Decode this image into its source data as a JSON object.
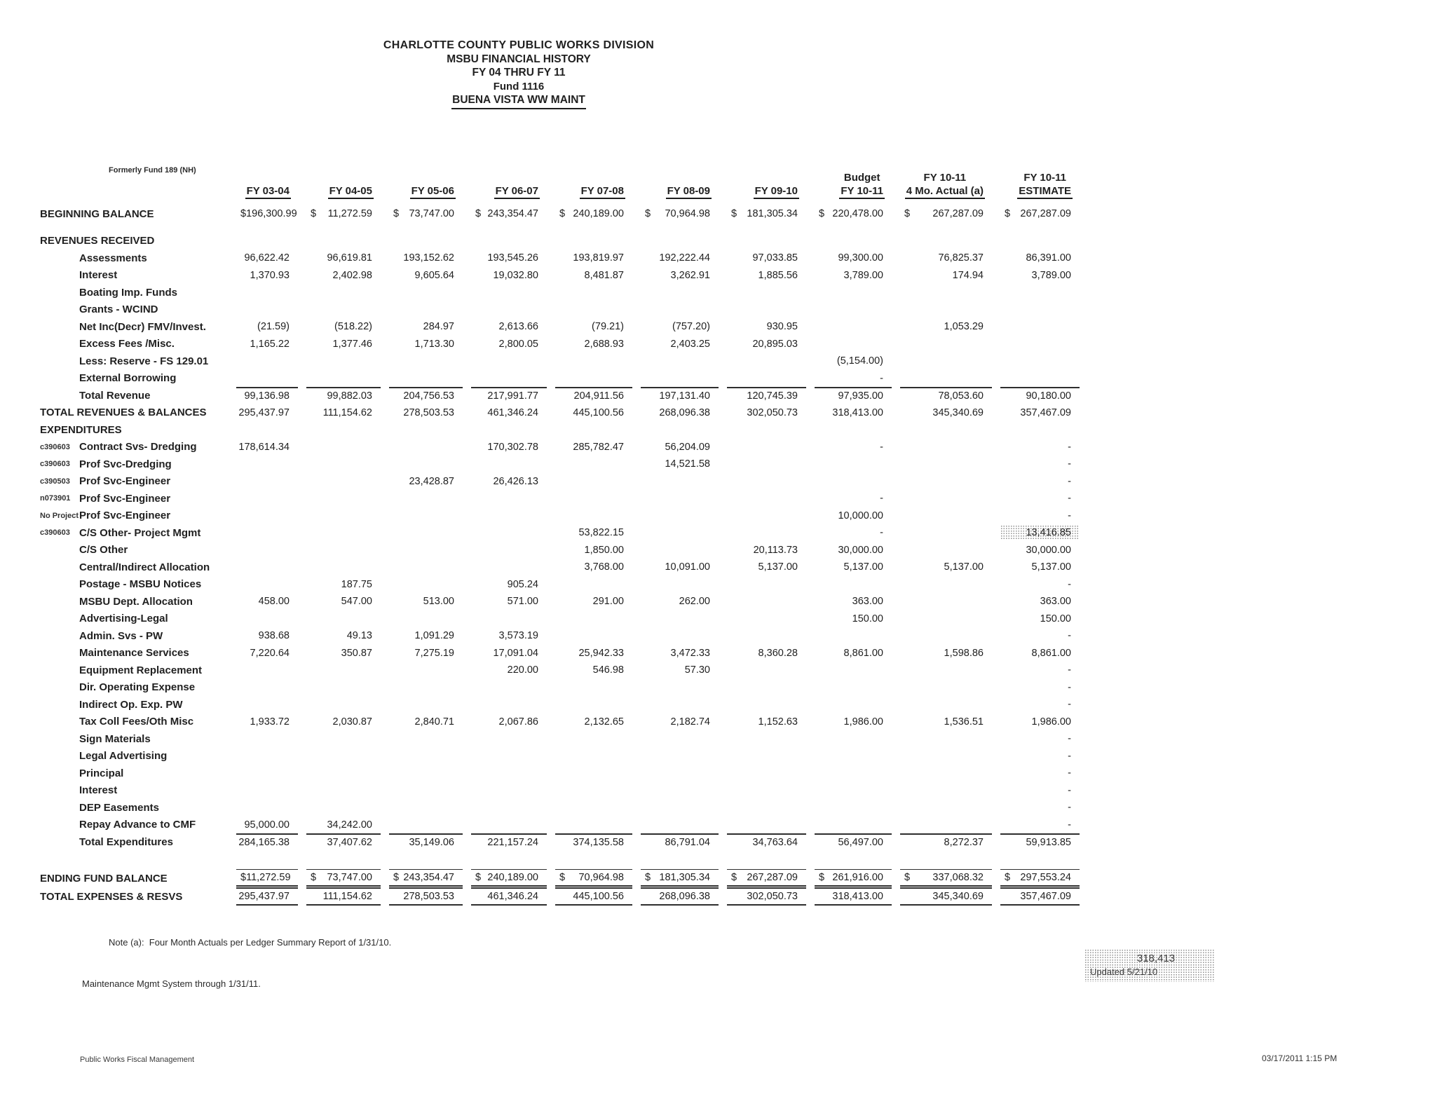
{
  "title": {
    "line1": "CHARLOTTE COUNTY PUBLIC WORKS DIVISION",
    "line2": "MSBU FINANCIAL HISTORY",
    "line3": "FY 04 THRU FY 11",
    "line4": "Fund 1116",
    "line5": "BUENA VISTA WW MAINT"
  },
  "subnote": "Formerly Fund 189 (NH)",
  "table": {
    "columns": [
      {
        "pre": "",
        "label": "FY 03-04"
      },
      {
        "pre": "",
        "label": "FY 04-05"
      },
      {
        "pre": "",
        "label": "FY 05-06"
      },
      {
        "pre": "",
        "label": "FY 06-07"
      },
      {
        "pre": "",
        "label": "FY 07-08"
      },
      {
        "pre": "",
        "label": "FY 08-09"
      },
      {
        "pre": "",
        "label": "FY 09-10"
      },
      {
        "pre": "Budget",
        "label": "FY 10-11"
      },
      {
        "pre": "FY 10-11",
        "label": "4 Mo. Actual (a)"
      },
      {
        "pre": "FY 10-11",
        "label": "ESTIMATE"
      }
    ],
    "rows": [
      {
        "wide": true,
        "dollar": true,
        "label": "BEGINNING BALANCE",
        "values": [
          "196,300.99",
          "11,272.59",
          "73,747.00",
          "243,354.47",
          "240,189.00",
          "70,964.98",
          "181,305.34",
          "220,478.00",
          "267,287.09",
          "267,287.09"
        ]
      },
      {
        "spacer": 14
      },
      {
        "section": "REVENUES RECEIVED"
      },
      {
        "label": "Assessments",
        "values": [
          "96,622.42",
          "96,619.81",
          "193,152.62",
          "193,545.26",
          "193,819.97",
          "192,222.44",
          "97,033.85",
          "99,300.00",
          "76,825.37",
          "86,391.00"
        ]
      },
      {
        "label": "Interest",
        "values": [
          "1,370.93",
          "2,402.98",
          "9,605.64",
          "19,032.80",
          "8,481.87",
          "3,262.91",
          "1,885.56",
          "3,789.00",
          "174.94",
          "3,789.00"
        ]
      },
      {
        "label": "Boating Imp. Funds",
        "values": [
          "",
          "",
          "",
          "",
          "",
          "",
          "",
          "",
          "",
          ""
        ]
      },
      {
        "label": "Grants - WCIND",
        "values": [
          "",
          "",
          "",
          "",
          "",
          "",
          "",
          "",
          "",
          ""
        ]
      },
      {
        "label": "Net Inc(Decr) FMV/Invest.",
        "values": [
          "(21.59)",
          "(518.22)",
          "284.97",
          "2,613.66",
          "(79.21)",
          "(757.20)",
          "930.95",
          "",
          "1,053.29",
          ""
        ]
      },
      {
        "label": "Excess Fees /Misc.",
        "values": [
          "1,165.22",
          "1,377.46",
          "1,713.30",
          "2,800.05",
          "2,688.93",
          "2,403.25",
          "20,895.03",
          "",
          "",
          ""
        ]
      },
      {
        "label": "Less: Reserve - FS 129.01",
        "values": [
          "",
          "",
          "",
          "",
          "",
          "",
          "",
          "(5,154.00)",
          "",
          ""
        ]
      },
      {
        "label": "External Borrowing",
        "values": [
          "",
          "",
          "",
          "",
          "",
          "",
          "",
          "-",
          "",
          ""
        ]
      },
      {
        "label": "Total Revenue",
        "rule": "top",
        "values": [
          "99,136.98",
          "99,882.03",
          "204,756.53",
          "217,991.77",
          "204,911.56",
          "197,131.40",
          "120,745.39",
          "97,935.00",
          "78,053.60",
          "90,180.00"
        ]
      },
      {
        "wide": true,
        "label": "TOTAL REVENUES & BALANCES",
        "values": [
          "295,437.97",
          "111,154.62",
          "278,503.53",
          "461,346.24",
          "445,100.56",
          "268,096.38",
          "302,050.73",
          "318,413.00",
          "345,340.69",
          "357,467.09"
        ]
      },
      {
        "section": "EXPENDITURES"
      },
      {
        "code": "c390603",
        "label": "Contract Svs- Dredging",
        "values": [
          "178,614.34",
          "",
          "",
          "170,302.78",
          "285,782.47",
          "56,204.09",
          "",
          "-",
          "",
          "-"
        ]
      },
      {
        "code": "c390603",
        "label": "Prof Svc-Dredging",
        "values": [
          "",
          "",
          "",
          "",
          "",
          "14,521.58",
          "",
          "",
          "",
          "-"
        ]
      },
      {
        "code": "c390503",
        "label": "Prof Svc-Engineer",
        "values": [
          "",
          "",
          "23,428.87",
          "26,426.13",
          "",
          "",
          "",
          "",
          "",
          "-"
        ]
      },
      {
        "code": "n073901",
        "label": "Prof Svc-Engineer",
        "values": [
          "",
          "",
          "",
          "",
          "",
          "",
          "",
          "-",
          "",
          "-"
        ]
      },
      {
        "code": "No Project",
        "label": "Prof Svc-Engineer",
        "values": [
          "",
          "",
          "",
          "",
          "",
          "",
          "",
          "10,000.00",
          "",
          "-"
        ]
      },
      {
        "code": "c390603",
        "label": "C/S Other- Project Mgmt",
        "highlight": 9,
        "values": [
          "",
          "",
          "",
          "",
          "53,822.15",
          "",
          "",
          "-",
          "",
          "13,416.85"
        ]
      },
      {
        "label": "C/S Other",
        "values": [
          "",
          "",
          "",
          "",
          "1,850.00",
          "",
          "20,113.73",
          "30,000.00",
          "",
          "30,000.00"
        ]
      },
      {
        "label": "Central/Indirect Allocation",
        "values": [
          "",
          "",
          "",
          "",
          "3,768.00",
          "10,091.00",
          "5,137.00",
          "5,137.00",
          "5,137.00",
          "5,137.00"
        ]
      },
      {
        "label": "Postage - MSBU Notices",
        "values": [
          "",
          "187.75",
          "",
          "905.24",
          "",
          "",
          "",
          "",
          "",
          "-"
        ]
      },
      {
        "label": "MSBU Dept. Allocation",
        "values": [
          "458.00",
          "547.00",
          "513.00",
          "571.00",
          "291.00",
          "262.00",
          "",
          "363.00",
          "",
          "363.00"
        ]
      },
      {
        "label": "Advertising-Legal",
        "values": [
          "",
          "",
          "",
          "",
          "",
          "",
          "",
          "150.00",
          "",
          "150.00"
        ]
      },
      {
        "label": "Admin. Svs - PW",
        "values": [
          "938.68",
          "49.13",
          "1,091.29",
          "3,573.19",
          "",
          "",
          "",
          "",
          "",
          "-"
        ]
      },
      {
        "label": "Maintenance Services",
        "values": [
          "7,220.64",
          "350.87",
          "7,275.19",
          "17,091.04",
          "25,942.33",
          "3,472.33",
          "8,360.28",
          "8,861.00",
          "1,598.86",
          "8,861.00"
        ]
      },
      {
        "label": "Equipment Replacement",
        "values": [
          "",
          "",
          "",
          "220.00",
          "546.98",
          "57.30",
          "",
          "",
          "",
          "-"
        ]
      },
      {
        "label": "Dir. Operating Expense",
        "values": [
          "",
          "",
          "",
          "",
          "",
          "",
          "",
          "",
          "",
          "-"
        ]
      },
      {
        "label": "Indirect Op. Exp. PW",
        "values": [
          "",
          "",
          "",
          "",
          "",
          "",
          "",
          "",
          "",
          "-"
        ]
      },
      {
        "label": "Tax Coll Fees/Oth Misc",
        "values": [
          "1,933.72",
          "2,030.87",
          "2,840.71",
          "2,067.86",
          "2,132.65",
          "2,182.74",
          "1,152.63",
          "1,986.00",
          "1,536.51",
          "1,986.00"
        ]
      },
      {
        "label": "Sign Materials",
        "values": [
          "",
          "",
          "",
          "",
          "",
          "",
          "",
          "",
          "",
          "-"
        ]
      },
      {
        "label": "Legal Advertising",
        "values": [
          "",
          "",
          "",
          "",
          "",
          "",
          "",
          "",
          "",
          "-"
        ]
      },
      {
        "label": "Principal",
        "values": [
          "",
          "",
          "",
          "",
          "",
          "",
          "",
          "",
          "",
          "-"
        ]
      },
      {
        "label": "Interest",
        "values": [
          "",
          "",
          "",
          "",
          "",
          "",
          "",
          "",
          "",
          "-"
        ]
      },
      {
        "label": "DEP Easements",
        "values": [
          "",
          "",
          "",
          "",
          "",
          "",
          "",
          "",
          "",
          "-"
        ]
      },
      {
        "label": "Repay Advance to CMF",
        "values": [
          "95,000.00",
          "34,242.00",
          "",
          "",
          "",
          "",
          "",
          "",
          "",
          "-"
        ]
      },
      {
        "label": "Total Expenditures",
        "rule": "top",
        "values": [
          "284,165.38",
          "37,407.62",
          "35,149.06",
          "221,157.24",
          "374,135.58",
          "86,791.04",
          "34,763.64",
          "56,497.00",
          "8,272.37",
          "59,913.85"
        ]
      },
      {
        "spacer": 26
      },
      {
        "wide": true,
        "dollar": true,
        "label": "ENDING FUND BALANCE",
        "rule": "ending",
        "values": [
          "11,272.59",
          "73,747.00",
          "243,354.47",
          "240,189.00",
          "70,964.98",
          "181,305.34",
          "267,287.09",
          "261,916.00",
          "337,068.32",
          "297,553.24"
        ]
      },
      {
        "wide": true,
        "label": "TOTAL EXPENSES & RESVS",
        "rule": "bottom",
        "values": [
          "295,437.97",
          "111,154.62",
          "278,503.53",
          "461,346.24",
          "445,100.56",
          "268,096.38",
          "302,050.73",
          "318,413.00",
          "345,340.69",
          "357,467.09"
        ]
      }
    ]
  },
  "notes": {
    "line1": "Note (a):  Four Month Actuals per Ledger Summary Report of 1/31/10.",
    "line2": "Maintenance Mgmt System through 1/31/11."
  },
  "stamp": {
    "value": "318,413",
    "text": "Updated 5/21/10"
  },
  "footer": {
    "left": "Public Works Fiscal Management",
    "right": "03/17/2011   1:15 PM"
  }
}
